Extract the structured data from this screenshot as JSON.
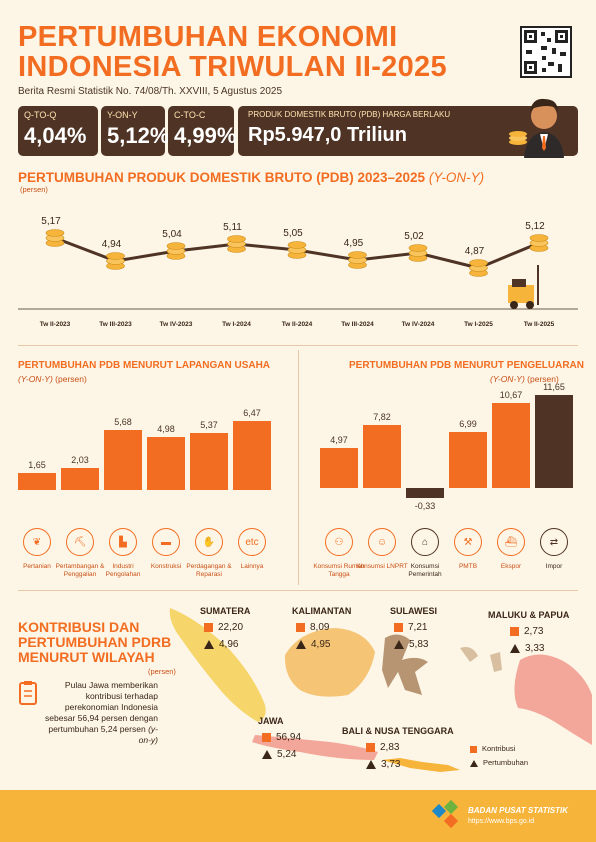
{
  "header": {
    "title_line1": "PERTUMBUHAN EKONOMI",
    "title_line2": "INDONESIA TRIWULAN II-2025",
    "subtitle": "Berita Resmi Statistik No. 74/08/Th. XXVIII, 5 Agustus 2025"
  },
  "stats": [
    {
      "label": "Q-TO-Q",
      "value": "4,04%"
    },
    {
      "label": "Y-ON-Y",
      "value": "5,12%"
    },
    {
      "label": "C-TO-C",
      "value": "4,99%"
    },
    {
      "label": "PRODUK DOMESTIK BRUTO (PDB) HARGA BERLAKU",
      "value": "Rp5.947,0 Triliun"
    }
  ],
  "trend": {
    "title": "PERTUMBUHAN PRODUK DOMESTIK BRUTO (PDB) 2023–2025",
    "title_suffix": "(Y-ON-Y)",
    "unit": "(persen)"
  },
  "chart_data": [
    {
      "type": "line",
      "title": "PERTUMBUHAN PRODUK DOMESTIK BRUTO (PDB) 2023–2025 (Y-ON-Y)",
      "categories": [
        "Tw II-2023",
        "Tw III-2023",
        "Tw IV-2023",
        "Tw I-2024",
        "Tw II-2024",
        "Tw III-2024",
        "Tw IV-2024",
        "Tw I-2025",
        "Tw II-2025"
      ],
      "values": [
        5.17,
        4.94,
        5.04,
        5.11,
        5.05,
        4.95,
        5.02,
        4.87,
        5.12
      ],
      "labels": [
        "5,17",
        "4,94",
        "5,04",
        "5,11",
        "5,05",
        "4,95",
        "5,02",
        "4,87",
        "5,12"
      ]
    },
    {
      "type": "bar",
      "title": "PERTUMBUHAN PDB MENURUT LAPANGAN USAHA",
      "categories": [
        "Pertanian",
        "Pertambangan & Penggalian",
        "Industri Pengolahan",
        "Konstruksi",
        "Perdagangan & Reparasi",
        "Lainnya"
      ],
      "values": [
        1.65,
        2.03,
        5.68,
        4.98,
        5.37,
        6.47
      ],
      "labels": [
        "1,65",
        "2,03",
        "5,68",
        "4,98",
        "5,37",
        "6,47"
      ]
    },
    {
      "type": "bar",
      "title": "PERTUMBUHAN PDB MENURUT PENGELUARAN",
      "categories": [
        "Konsumsi Rumah Tangga",
        "Konsumsi LNPRT",
        "Konsumsi Pemerintah",
        "PMTB",
        "Ekspor",
        "Impor"
      ],
      "values": [
        4.97,
        7.82,
        -0.33,
        6.99,
        10.67,
        11.65
      ],
      "labels": [
        "4,97",
        "7,82",
        "-0,33",
        "6,99",
        "10,67",
        "11,65"
      ]
    }
  ],
  "sector": {
    "title": "PERTUMBUHAN PDB MENURUT LAPANGAN USAHA",
    "unit_italic": "(Y-ON-Y)",
    "unit": "(persen)",
    "icons": [
      "leaf-icon",
      "mining-icon",
      "factory-icon",
      "truck-icon",
      "handshake-icon",
      "etc-icon"
    ],
    "labels": [
      "Pertanian",
      "Pertambangan & Penggalian",
      "Industri Pengolahan",
      "Konstruksi",
      "Perdagangan & Reparasi",
      "Lainnya"
    ]
  },
  "expenditure": {
    "title": "PERTUMBUHAN PDB MENURUT PENGELUARAN",
    "unit_italic": "(Y-ON-Y)",
    "unit": "(persen)",
    "labels": [
      "Konsumsi Rumah Tangga",
      "Konsumsi LNPRT",
      "Konsumsi Pemerintah",
      "PMTB",
      "Ekspor",
      "Impor"
    ]
  },
  "regional": {
    "title_line1": "KONTRIBUSI DAN",
    "title_line2": "PERTUMBUHAN PDRB",
    "title_line3": "MENURUT WILAYAH",
    "unit": "(persen)",
    "note": "Pulau Jawa memberikan kontribusi terhadap perekonomian Indonesia sebesar 56,94 persen dengan pertumbuhan 5,24 persen",
    "note_suffix": "(y-on-y)",
    "regions": [
      {
        "name": "SUMATERA",
        "kontribusi": "22,20",
        "pertumbuhan": "4,96"
      },
      {
        "name": "KALIMANTAN",
        "kontribusi": "8,09",
        "pertumbuhan": "4,95"
      },
      {
        "name": "SULAWESI",
        "kontribusi": "7,21",
        "pertumbuhan": "5,83"
      },
      {
        "name": "MALUKU & PAPUA",
        "kontribusi": "2,73",
        "pertumbuhan": "3,33"
      },
      {
        "name": "JAWA",
        "kontribusi": "56,94",
        "pertumbuhan": "5,24"
      },
      {
        "name": "BALI & NUSA TENGGARA",
        "kontribusi": "2,83",
        "pertumbuhan": "3,73"
      }
    ],
    "legend_kontribusi": "Kontribusi",
    "legend_pertumbuhan": "Pertumbuhan"
  },
  "footer": {
    "org": "BADAN PUSAT STATISTIK",
    "url": "https://www.bps.go.id"
  },
  "colors": {
    "accent": "#f26d21",
    "dark": "#4f3425",
    "gold": "#f7b43a",
    "background": "#fdf6e6"
  }
}
